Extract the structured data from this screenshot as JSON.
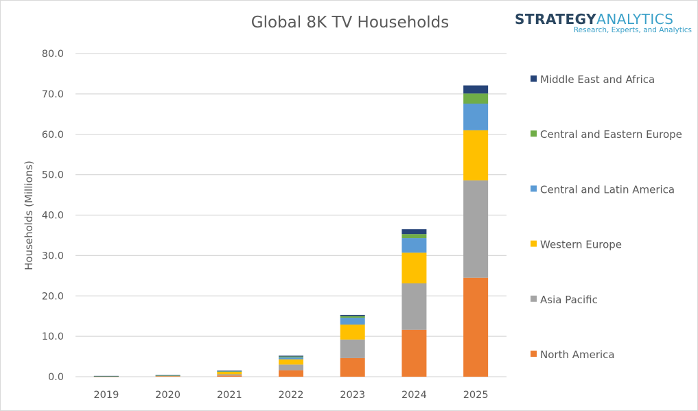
{
  "header": {
    "title": "Global 8K TV Households",
    "logo_part1": "STRATEGY",
    "logo_part2": "ANALYTICS",
    "logo_tagline": "Research, Experts, and Analytics"
  },
  "chart_data": {
    "type": "bar",
    "stacked": true,
    "title": "Global 8K TV Households",
    "xlabel": "",
    "ylabel": "Households (Millions)",
    "ylim": [
      0,
      80
    ],
    "yticks": [
      "0.0",
      "10.0",
      "20.0",
      "30.0",
      "40.0",
      "50.0",
      "60.0",
      "70.0",
      "80.0"
    ],
    "ytick_values": [
      0,
      10,
      20,
      30,
      40,
      50,
      60,
      70,
      80
    ],
    "grid": true,
    "legend_position": "right",
    "categories": [
      "2019",
      "2020",
      "2021",
      "2022",
      "2023",
      "2024",
      "2025"
    ],
    "series": [
      {
        "name": "North America",
        "color": "#ed7d31",
        "values": [
          0.05,
          0.1,
          0.3,
          1.6,
          4.6,
          11.6,
          24.5
        ]
      },
      {
        "name": "Asia Pacific",
        "color": "#a5a5a5",
        "values": [
          0.05,
          0.1,
          0.3,
          1.4,
          4.6,
          11.5,
          24.1
        ]
      },
      {
        "name": "Western Europe",
        "color": "#ffc000",
        "values": [
          0.02,
          0.05,
          0.6,
          1.3,
          3.7,
          7.6,
          12.4
        ]
      },
      {
        "name": "Central and Latin America",
        "color": "#5b9bd5",
        "values": [
          0.01,
          0.02,
          0.1,
          0.5,
          1.7,
          3.6,
          6.6
        ]
      },
      {
        "name": "Central and Eastern Europe",
        "color": "#70ad47",
        "values": [
          0.01,
          0.02,
          0.05,
          0.2,
          0.4,
          1.0,
          2.5
        ]
      },
      {
        "name": "Middle East and Africa",
        "color": "#264478",
        "values": [
          0.06,
          0.11,
          0.15,
          0.2,
          0.3,
          1.2,
          2.0
        ]
      }
    ],
    "legend_order": [
      "Middle East and Africa",
      "Central and Eastern Europe",
      "Central and Latin America",
      "Western Europe",
      "Asia Pacific",
      "North America"
    ]
  }
}
